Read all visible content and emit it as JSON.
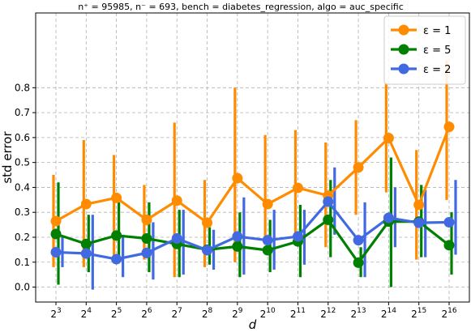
{
  "chart_data": {
    "type": "line",
    "title": "n⁺ = 95985, n⁻ = 693, bench = diabetes_regression, algo = auc_specific",
    "xlabel": "d",
    "ylabel": "std error",
    "ylim": [
      -0.06,
      1.1
    ],
    "yticks": [
      0.0,
      0.1,
      0.2,
      0.3,
      0.4,
      0.5,
      0.6,
      0.7,
      0.8
    ],
    "ytick_labels": [
      "0.0",
      "0.1",
      "0.2",
      "0.3",
      "0.4",
      "0.5",
      "0.6",
      "0.7",
      "0.8"
    ],
    "categories": [
      "3",
      "4",
      "5",
      "6",
      "7",
      "8",
      "9",
      "10",
      "11",
      "12",
      "13",
      "14",
      "15",
      "16"
    ],
    "x_base": "2",
    "grid": true,
    "legend_position": "top-right",
    "series": [
      {
        "name": "ε = 1",
        "color": "#ff8c00",
        "values": [
          0.265,
          0.333,
          0.358,
          0.27,
          0.347,
          0.258,
          0.437,
          0.333,
          0.398,
          0.367,
          0.48,
          0.598,
          0.33,
          0.643
        ],
        "err_low": [
          0.08,
          0.08,
          0.1,
          0.11,
          0.04,
          0.08,
          0.1,
          0.17,
          0.2,
          0.16,
          0.29,
          0.38,
          0.11,
          0.35
        ],
        "err_high": [
          0.45,
          0.59,
          0.53,
          0.41,
          0.66,
          0.43,
          0.8,
          0.61,
          0.63,
          0.58,
          0.67,
          0.82,
          0.55,
          0.91
        ]
      },
      {
        "name": "ε = 5",
        "color": "#008000",
        "values": [
          0.213,
          0.173,
          0.207,
          0.195,
          0.173,
          0.15,
          0.163,
          0.148,
          0.183,
          0.27,
          0.098,
          0.263,
          0.263,
          0.168
        ],
        "err_low": [
          0.01,
          0.06,
          0.1,
          0.06,
          0.04,
          0.09,
          0.04,
          0.06,
          0.04,
          0.12,
          0.04,
          0.0,
          0.12,
          0.05
        ],
        "err_high": [
          0.42,
          0.29,
          0.34,
          0.34,
          0.31,
          0.24,
          0.3,
          0.27,
          0.33,
          0.43,
          0.16,
          0.52,
          0.41,
          0.3
        ]
      },
      {
        "name": "ε = 2",
        "color": "#4169e1",
        "values": [
          0.14,
          0.135,
          0.112,
          0.137,
          0.195,
          0.148,
          0.203,
          0.188,
          0.203,
          0.343,
          0.188,
          0.278,
          0.258,
          0.26
        ],
        "err_low": [
          0.08,
          -0.01,
          0.04,
          0.03,
          0.05,
          0.07,
          0.05,
          0.07,
          0.09,
          0.21,
          0.04,
          0.16,
          0.12,
          0.13
        ],
        "err_high": [
          0.2,
          0.29,
          0.21,
          0.26,
          0.31,
          0.23,
          0.36,
          0.31,
          0.31,
          0.48,
          0.34,
          0.4,
          0.39,
          0.43
        ]
      }
    ]
  }
}
